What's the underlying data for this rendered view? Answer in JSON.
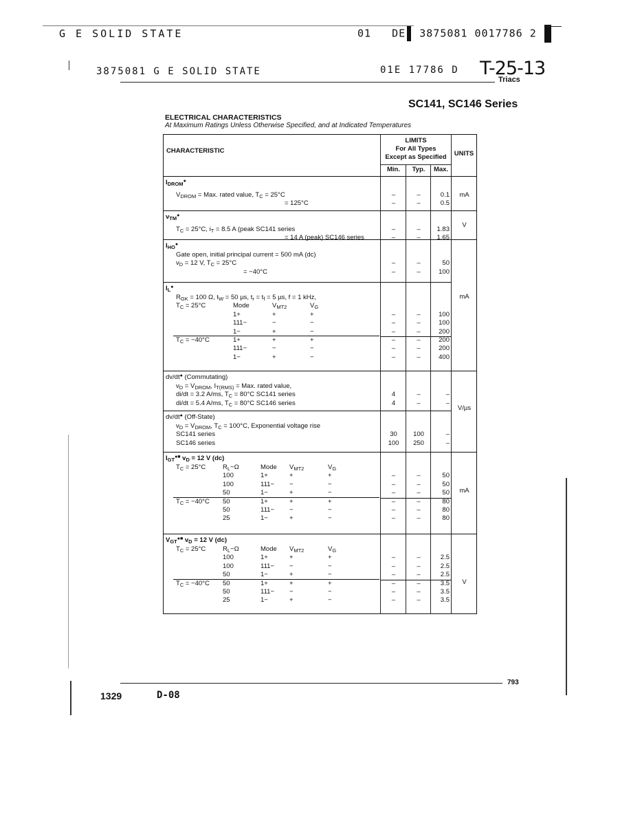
{
  "header": {
    "line1_left": "G E SOLID STATE",
    "line1_right_a": "01",
    "line1_right_b": "DE",
    "line1_right_c": "3875081 0017786 2",
    "line2_left": "3875081 G E SOLID STATE",
    "line2_right": "01E 17786   D",
    "handwritten_code": "T-25-13",
    "category": "Triacs",
    "series_title": "SC141, SC146 Series"
  },
  "section": {
    "title": "ELECTRICAL CHARACTERISTICS",
    "subtitle": "At Maximum Ratings Unless Otherwise Specified, and at Indicated Temperatures"
  },
  "table_header": {
    "characteristic": "CHARACTERISTIC",
    "limits_1": "LIMITS",
    "limits_2": "For All Types",
    "limits_3": "Except as Specified",
    "min": "Min.",
    "typ": "Typ.",
    "max": "Max.",
    "units": "UNITS"
  },
  "sections": [
    {
      "lines": [
        {
          "title": "I_{DROM}^{●}"
        },
        {
          "t": "V_{DROM} = Max. rated value, T_{C} = 25°C",
          "ind": true,
          "v": [
            "–",
            "–",
            "0.1"
          ]
        },
        {
          "t": "= 125°C",
          "rt": true,
          "v": [
            "–",
            "–",
            "0.5"
          ]
        }
      ]
    },
    {
      "lines": [
        {
          "title": "v_{TM}^{●}"
        },
        {
          "t": "T_{C} = 25°C, i_{T} = 8.5 A (peak SC141 series",
          "ind": true,
          "v": [
            "–",
            "–",
            "1.83"
          ]
        },
        {
          "t": "= 14 A (peak) SC146 series",
          "rt": true,
          "v": [
            "–",
            "–",
            "1.65"
          ]
        }
      ]
    },
    {
      "lines": [
        {
          "title": "I_{HO}^{●}"
        },
        {
          "t": "Gate open, initial principal current = 500 mA (dc)",
          "ind": true
        },
        {
          "t": "v_{D} = 12 V, T_{C} = 25°C",
          "ind": true,
          "v": [
            "–",
            "–",
            "50"
          ]
        },
        {
          "t": "= −40°C",
          "rt2": true,
          "v": [
            "–",
            "–",
            "100"
          ]
        }
      ]
    },
    {
      "lines": [
        {
          "title": "I_{L}^{●}"
        },
        {
          "t": "R_{GK} = 100 Ω, t_{W} = 50 µs, t_{r} = t_{f} = 5 µs, f = 1 kHz,",
          "ind": true
        },
        {
          "cols4": [
            "T_{C} = 25°C",
            "Mode",
            "V_{MT2}",
            "V_{G}"
          ]
        },
        {
          "cols4": [
            "",
            "1+",
            "+",
            "+"
          ],
          "v": [
            "–",
            "–",
            "100"
          ]
        },
        {
          "cols4": [
            "",
            "111−",
            "−",
            "−"
          ],
          "v": [
            "–",
            "–",
            "100"
          ]
        },
        {
          "cols4": [
            "",
            "1−",
            "+",
            "−"
          ],
          "v": [
            "–",
            "–",
            "200"
          ],
          "sep": true
        },
        {
          "cols4": [
            "T_{C} = −40°C",
            "1+",
            "+",
            "+"
          ],
          "v": [
            "–",
            "–",
            "200"
          ]
        },
        {
          "cols4": [
            "",
            "111−",
            "−",
            "−"
          ],
          "v": [
            "–",
            "–",
            "200"
          ]
        },
        {
          "cols4": [
            "",
            "1−",
            "+",
            "−"
          ],
          "v": [
            "–",
            "–",
            "400"
          ]
        }
      ]
    },
    {
      "lines": [
        {
          "title": "dv/dt^{●} (Commutating)",
          "plain": true
        },
        {
          "t": "v_{D} = V_{DROM}, I_{T(RMS)} = Max. rated value,",
          "ind": true
        },
        {
          "t": "di/dt = 3.2 A/ms,  T_{C} = 80°C        SC141 series",
          "ind": true,
          "v": [
            "4",
            "–",
            "–"
          ]
        },
        {
          "t": "di/dt = 5.4 A/ms,  T_{C} = 80°C        SC146 series",
          "ind": true,
          "v": [
            "4",
            "–",
            "–"
          ]
        }
      ]
    },
    {
      "lines": [
        {
          "title": "dv/dt^{●} (Off-State)",
          "plain": true
        },
        {
          "t": "v_{D} = V_{DROM}, T_{C} = 100°C, Exponential voltage rise",
          "ind": true
        },
        {
          "t": "SC141 series",
          "ind": true,
          "v": [
            "30",
            "100",
            "–"
          ]
        },
        {
          "t": "SC146 series",
          "ind": true,
          "v": [
            "100",
            "250",
            "–"
          ]
        }
      ]
    },
    {
      "lines": [
        {
          "title": "I_{GT}^{●■}  v_{D} = 12 V (dc)"
        },
        {
          "cols5": [
            "T_{C} = 25°C",
            "R_{L}−Ω",
            "Mode",
            "V_{MT2}",
            "V_{G}"
          ]
        },
        {
          "cols5": [
            "",
            "100",
            "1+",
            "+",
            "+"
          ],
          "v": [
            "–",
            "–",
            "50"
          ]
        },
        {
          "cols5": [
            "",
            "100",
            "111−",
            "−",
            "−"
          ],
          "v": [
            "–",
            "–",
            "50"
          ]
        },
        {
          "cols5": [
            "",
            "50",
            "1−",
            "+",
            "−"
          ],
          "v": [
            "–",
            "–",
            "50"
          ],
          "sep": true
        },
        {
          "cols5": [
            "T_{C} = −40°C",
            "50",
            "1+",
            "+",
            "+"
          ],
          "v": [
            "–",
            "–",
            "80"
          ]
        },
        {
          "cols5": [
            "",
            "50",
            "111−",
            "−",
            "−"
          ],
          "v": [
            "–",
            "–",
            "80"
          ]
        },
        {
          "cols5": [
            "",
            "25",
            "1−",
            "+",
            "−"
          ],
          "v": [
            "–",
            "–",
            "80"
          ]
        }
      ]
    },
    {
      "lines": [
        {
          "title": "V_{GT}^{●■}  v_{D} = 12 V (dc)"
        },
        {
          "cols5": [
            "T_{C} = 25°C",
            "R_{L}−Ω",
            "Mode",
            "V_{MT2}",
            "V_{G}"
          ]
        },
        {
          "cols5": [
            "",
            "100",
            "1+",
            "+",
            "+"
          ],
          "v": [
            "–",
            "–",
            "2.5"
          ]
        },
        {
          "cols5": [
            "",
            "100",
            "111−",
            "−",
            "−"
          ],
          "v": [
            "–",
            "–",
            "2.5"
          ]
        },
        {
          "cols5": [
            "",
            "50",
            "1−",
            "+",
            "−"
          ],
          "v": [
            "–",
            "–",
            "2.5"
          ],
          "sep": true
        },
        {
          "cols5": [
            "T_{C} = −40°C",
            "50",
            "1+",
            "+",
            "+"
          ],
          "v": [
            "–",
            "–",
            "3.5"
          ]
        },
        {
          "cols5": [
            "",
            "50",
            "111−",
            "−",
            "−"
          ],
          "v": [
            "–",
            "–",
            "3.5"
          ]
        },
        {
          "cols5": [
            "",
            "25",
            "1−",
            "+",
            "−"
          ],
          "v": [
            "–",
            "–",
            "3.5"
          ]
        }
      ]
    }
  ],
  "units": [
    "mA",
    "V",
    "mA",
    "V/µs",
    "mA",
    "V"
  ],
  "footer": {
    "page_number": "793",
    "left_code": "1329",
    "doc_code": "D-08"
  }
}
